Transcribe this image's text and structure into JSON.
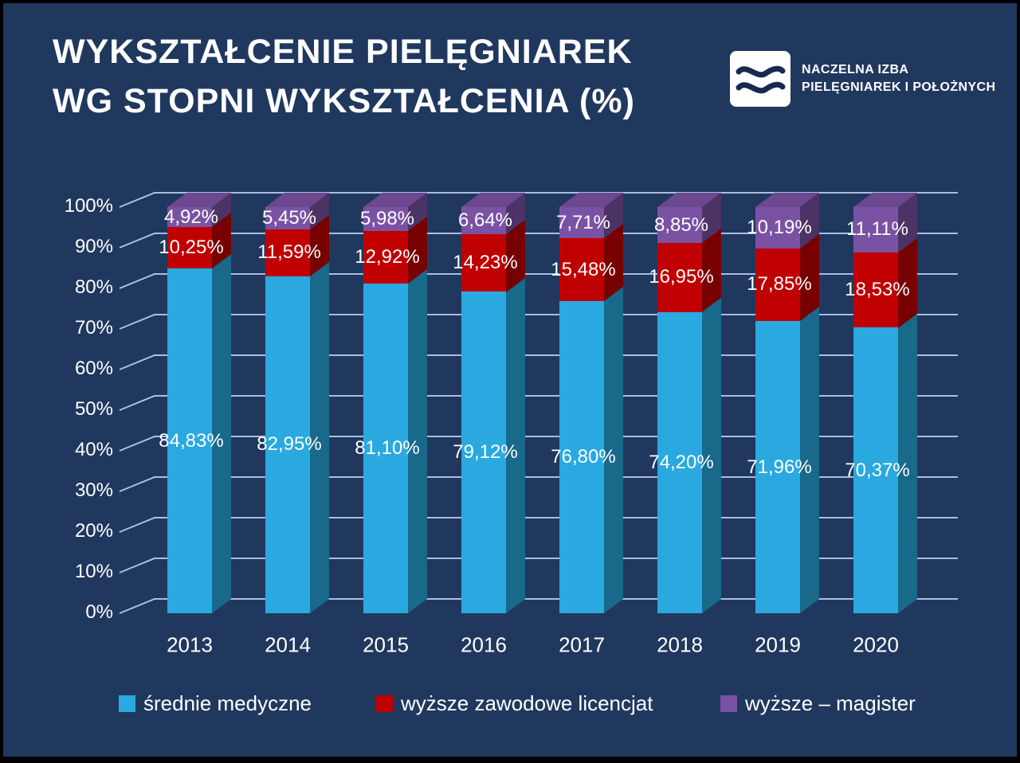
{
  "slide": {
    "title_line1": "WYKSZTAŁCENIE PIELĘGNIAREK",
    "title_line2": "WG STOPNI WYKSZTAŁCENIA (%)",
    "logo": {
      "org_line1": "NACZELNA IZBA",
      "org_line2": "PIELĘGNIAREK I POŁOŻNYCH"
    }
  },
  "colors": {
    "background": "#20385E",
    "gridline": "#A9BEE3",
    "text": "#FFFFFF",
    "series_cyan": "#29A9E0",
    "series_red": "#C00000",
    "series_purple": "#7A52A3"
  },
  "chart_data": {
    "type": "bar",
    "subtype": "3d-stacked-100-percent-column",
    "title": "WYKSZTAŁCENIE PIELĘGNIAREK WG STOPNI WYKSZTAŁCENIA (%)",
    "categories": [
      "2013",
      "2014",
      "2015",
      "2016",
      "2017",
      "2018",
      "2019",
      "2020"
    ],
    "series": [
      {
        "name": "średnie medyczne",
        "color": "#29A9E0",
        "values": [
          84.83,
          82.95,
          81.1,
          79.12,
          76.8,
          74.2,
          71.96,
          70.37
        ]
      },
      {
        "name": "wyższe zawodowe licencjat",
        "color": "#C00000",
        "values": [
          10.25,
          11.59,
          12.92,
          14.23,
          15.48,
          16.95,
          17.85,
          18.53
        ]
      },
      {
        "name": "wyższe – magister",
        "color": "#7A52A3",
        "values": [
          4.92,
          5.45,
          5.98,
          6.64,
          7.71,
          8.85,
          10.19,
          11.11
        ]
      }
    ],
    "y_ticks": [
      "0%",
      "10%",
      "20%",
      "30%",
      "40%",
      "50%",
      "60%",
      "70%",
      "80%",
      "90%",
      "100%"
    ],
    "ylim": [
      0,
      100
    ],
    "grid": true,
    "legend_position": "bottom",
    "data_label_format": "0,00%"
  }
}
